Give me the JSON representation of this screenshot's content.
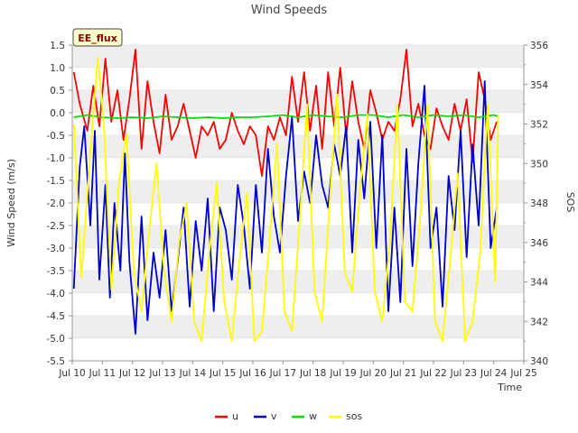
{
  "chart_data": {
    "type": "line",
    "title": "Wind Speeds",
    "tag": "EE_flux",
    "xlabel": "Time",
    "ylabel": "Wind Speed (m/s)",
    "y2label": "SOS",
    "xlim": [
      10,
      25
    ],
    "ylim": [
      -5.5,
      1.5
    ],
    "y2lim": [
      340,
      356
    ],
    "x_ticks": [
      10,
      11,
      12,
      13,
      14,
      15,
      16,
      17,
      18,
      19,
      20,
      21,
      22,
      23,
      24,
      25
    ],
    "x_tick_labels": [
      "Jul 10",
      "Jul 11",
      "Jul 12",
      "Jul 13",
      "Jul 14",
      "Jul 15",
      "Jul 16",
      "Jul 17",
      "Jul 18",
      "Jul 19",
      "Jul 20",
      "Jul 21",
      "Jul 22",
      "Jul 23",
      "Jul 24",
      "Jul 25"
    ],
    "y_ticks": [
      1.5,
      1.0,
      0.5,
      0.0,
      -0.5,
      -1.0,
      -1.5,
      -2.0,
      -2.5,
      -3.0,
      -3.5,
      -4.0,
      -4.5,
      -5.0,
      -5.5
    ],
    "y_tick_labels": [
      "1.5",
      "1.0",
      "0.5",
      "0.0",
      "-0.5",
      "-1.0",
      "-1.5",
      "-2.0",
      "-2.5",
      "-3.0",
      "-3.5",
      "-4.0",
      "-4.5",
      "-5.0",
      "-5.5"
    ],
    "y2_ticks": [
      356,
      354,
      352,
      350,
      348,
      346,
      344,
      342,
      340
    ],
    "y2_tick_labels": [
      "356",
      "354",
      "352",
      "350",
      "348",
      "346",
      "344",
      "342",
      "340"
    ],
    "legend": [
      {
        "name": "u",
        "color": "#ff0000"
      },
      {
        "name": "v",
        "color": "#0000cc"
      },
      {
        "name": "w",
        "color": "#00dd00"
      },
      {
        "name": "sos",
        "color": "#ffff00"
      }
    ],
    "series": [
      {
        "name": "u",
        "axis": "left",
        "color": "#ff0000",
        "x": [
          10.05,
          10.25,
          10.5,
          10.7,
          10.9,
          11.1,
          11.3,
          11.5,
          11.7,
          11.9,
          12.1,
          12.3,
          12.5,
          12.7,
          12.9,
          13.1,
          13.3,
          13.5,
          13.7,
          13.9,
          14.1,
          14.3,
          14.5,
          14.7,
          14.9,
          15.1,
          15.3,
          15.5,
          15.7,
          15.9,
          16.1,
          16.3,
          16.5,
          16.7,
          16.9,
          17.1,
          17.3,
          17.5,
          17.7,
          17.9,
          18.1,
          18.3,
          18.5,
          18.7,
          18.9,
          19.1,
          19.3,
          19.5,
          19.7,
          19.9,
          20.1,
          20.3,
          20.5,
          20.7,
          20.9,
          21.1,
          21.3,
          21.5,
          21.7,
          21.9,
          22.1,
          22.3,
          22.5,
          22.7,
          22.9,
          23.1,
          23.3,
          23.5,
          23.7,
          23.9,
          24.1
        ],
        "values": [
          0.9,
          0.2,
          -0.4,
          0.6,
          -0.3,
          1.2,
          -0.2,
          0.5,
          -0.6,
          0.3,
          1.4,
          -0.8,
          0.7,
          -0.2,
          -0.9,
          0.4,
          -0.6,
          -0.3,
          0.2,
          -0.4,
          -1.0,
          -0.3,
          -0.5,
          -0.2,
          -0.8,
          -0.6,
          0.0,
          -0.4,
          -0.7,
          -0.3,
          -0.5,
          -1.4,
          -0.3,
          -0.6,
          -0.1,
          -0.5,
          0.8,
          -0.2,
          0.9,
          -0.4,
          0.6,
          -0.8,
          0.9,
          -0.3,
          1.0,
          -0.5,
          0.7,
          -0.2,
          -0.8,
          0.5,
          0.0,
          -0.6,
          -0.2,
          -0.4,
          0.3,
          1.4,
          -0.3,
          0.2,
          -0.5,
          -0.8,
          0.1,
          -0.3,
          -0.6,
          0.2,
          -0.4,
          0.3,
          -1.1,
          0.9,
          0.3,
          -0.6,
          -0.2
        ]
      },
      {
        "name": "v",
        "axis": "left",
        "color": "#0000cc",
        "x": [
          10.05,
          10.25,
          10.4,
          10.6,
          10.75,
          10.9,
          11.1,
          11.25,
          11.4,
          11.6,
          11.75,
          11.9,
          12.1,
          12.3,
          12.5,
          12.7,
          12.9,
          13.1,
          13.3,
          13.5,
          13.7,
          13.9,
          14.1,
          14.3,
          14.5,
          14.7,
          14.9,
          15.1,
          15.3,
          15.5,
          15.7,
          15.9,
          16.1,
          16.3,
          16.5,
          16.7,
          16.9,
          17.1,
          17.3,
          17.5,
          17.7,
          17.9,
          18.1,
          18.3,
          18.5,
          18.7,
          18.9,
          19.1,
          19.3,
          19.5,
          19.7,
          19.9,
          20.1,
          20.3,
          20.5,
          20.7,
          20.9,
          21.1,
          21.3,
          21.5,
          21.7,
          21.9,
          22.1,
          22.3,
          22.5,
          22.7,
          22.9,
          23.1,
          23.3,
          23.5,
          23.7,
          23.9,
          24.1
        ],
        "values": [
          -3.9,
          -1.2,
          -0.3,
          -2.5,
          -0.4,
          -3.7,
          -1.6,
          -4.1,
          -2.0,
          -3.5,
          -0.9,
          -3.3,
          -4.9,
          -2.3,
          -4.6,
          -3.1,
          -4.1,
          -2.6,
          -4.4,
          -3.3,
          -2.1,
          -4.3,
          -2.4,
          -3.5,
          -1.9,
          -4.4,
          -2.1,
          -2.6,
          -3.7,
          -1.6,
          -2.5,
          -3.9,
          -1.6,
          -3.1,
          -0.8,
          -2.3,
          -3.1,
          -1.4,
          -0.1,
          -2.4,
          -1.3,
          -2.0,
          -0.5,
          -1.6,
          -2.1,
          -0.7,
          -1.4,
          -0.3,
          -3.1,
          -0.6,
          -1.9,
          -0.2,
          -3.0,
          -0.5,
          -4.4,
          -2.1,
          -4.2,
          -0.8,
          -3.4,
          -1.1,
          0.6,
          -3.0,
          -2.1,
          -4.3,
          -1.4,
          -2.6,
          -0.4,
          -3.2,
          -0.7,
          -2.5,
          0.7,
          -3.0,
          -2.1
        ]
      },
      {
        "name": "w",
        "axis": "left",
        "color": "#00dd00",
        "x": [
          10.05,
          10.5,
          11.0,
          11.5,
          12.0,
          12.5,
          13.0,
          13.5,
          14.0,
          14.5,
          15.0,
          15.5,
          16.0,
          16.5,
          17.0,
          17.5,
          18.0,
          18.5,
          19.0,
          19.5,
          20.0,
          20.5,
          21.0,
          21.5,
          22.0,
          22.5,
          23.0,
          23.5,
          24.0,
          24.15
        ],
        "values": [
          -0.1,
          -0.05,
          -0.1,
          -0.12,
          -0.1,
          -0.12,
          -0.08,
          -0.1,
          -0.12,
          -0.1,
          -0.12,
          -0.1,
          -0.1,
          -0.08,
          -0.05,
          -0.1,
          -0.05,
          -0.08,
          -0.1,
          -0.05,
          -0.05,
          -0.1,
          -0.05,
          -0.1,
          -0.05,
          -0.08,
          -0.05,
          -0.1,
          -0.05,
          -0.08
        ]
      },
      {
        "name": "sos",
        "axis": "right",
        "color": "#ffff00",
        "x": [
          10.05,
          10.3,
          10.55,
          10.85,
          11.05,
          11.3,
          11.55,
          11.8,
          12.05,
          12.3,
          12.55,
          12.8,
          13.05,
          13.3,
          13.55,
          13.8,
          14.05,
          14.3,
          14.55,
          14.8,
          15.05,
          15.3,
          15.55,
          15.8,
          16.05,
          16.3,
          16.55,
          16.8,
          17.05,
          17.3,
          17.55,
          17.8,
          18.05,
          18.3,
          18.55,
          18.8,
          19.05,
          19.3,
          19.55,
          19.8,
          20.05,
          20.3,
          20.55,
          20.8,
          21.05,
          21.3,
          21.55,
          21.8,
          22.05,
          22.3,
          22.55,
          22.8,
          23.05,
          23.3,
          23.55,
          23.8,
          24.05,
          24.15
        ],
        "values": [
          352.0,
          344.2,
          349.5,
          355.4,
          352.0,
          343.6,
          349.0,
          351.5,
          344.5,
          342.5,
          346.5,
          350.0,
          344.5,
          342.0,
          346.0,
          348.0,
          342.0,
          341.0,
          345.5,
          349.0,
          343.0,
          341.0,
          345.0,
          348.5,
          341.0,
          341.5,
          346.0,
          351.0,
          342.5,
          341.5,
          347.0,
          353.0,
          343.5,
          342.0,
          348.0,
          353.5,
          344.5,
          343.5,
          348.5,
          352.5,
          343.5,
          342.0,
          346.0,
          353.0,
          343.0,
          342.5,
          347.0,
          353.0,
          342.0,
          341.0,
          345.0,
          349.5,
          341.0,
          342.0,
          345.5,
          353.0,
          344.0,
          352.5
        ]
      }
    ]
  }
}
